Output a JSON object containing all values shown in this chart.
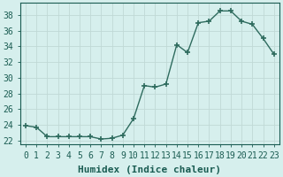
{
  "xlabel": "Humidex (Indice chaleur)",
  "x": [
    0,
    1,
    2,
    3,
    4,
    5,
    6,
    7,
    8,
    9,
    10,
    11,
    12,
    13,
    14,
    15,
    16,
    17,
    18,
    19,
    20,
    21,
    22,
    23
  ],
  "y": [
    23.9,
    23.7,
    22.5,
    22.5,
    22.5,
    22.5,
    22.5,
    22.2,
    22.3,
    22.7,
    24.8,
    29.0,
    28.8,
    29.2,
    34.2,
    33.2,
    37.0,
    37.2,
    38.5,
    38.5,
    37.2,
    36.8,
    35.0,
    33.0
  ],
  "line_color": "#2e6b5e",
  "bg_color": "#d6efed",
  "grid_color": "#c0d9d6",
  "text_color": "#1a5c52",
  "ylim": [
    21.5,
    39.5
  ],
  "yticks": [
    22,
    24,
    26,
    28,
    30,
    32,
    34,
    36,
    38
  ],
  "xlim": [
    -0.5,
    23.5
  ],
  "xticks": [
    0,
    1,
    2,
    3,
    4,
    5,
    6,
    7,
    8,
    9,
    10,
    11,
    12,
    13,
    14,
    15,
    16,
    17,
    18,
    19,
    20,
    21,
    22,
    23
  ],
  "xlabel_fontsize": 8,
  "tick_fontsize": 7,
  "marker_size": 4,
  "line_width": 1.0
}
